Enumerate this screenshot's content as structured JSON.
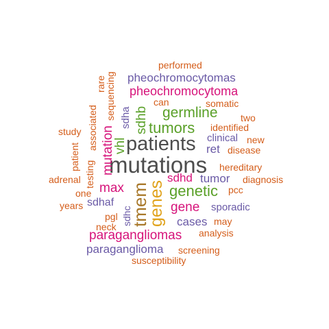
{
  "colors": {
    "dark_grey": "#4d4d4d",
    "purple": "#6a5aa6",
    "magenta": "#d6137a",
    "green": "#5aa028",
    "orange": "#d45d1a",
    "gold": "#e0a21b",
    "brown": "#a8782a"
  },
  "words": {
    "mutations": "mutations",
    "patients": "patients",
    "tmem": "tmem",
    "genes": "genes",
    "genetic": "genetic",
    "tumors": "tumors",
    "germline": "germline",
    "mutation": "mutation",
    "sdhb": "sdhb",
    "paragangliomas": "paragangliomas",
    "pheochromocytoma": "pheochromocytoma",
    "pheochromocytomas": "pheochromocytomas",
    "gene": "gene",
    "max": "max",
    "vhl": "vhl",
    "sdhd": "sdhd",
    "tumor": "tumor",
    "ret": "ret",
    "cases": "cases",
    "paraganglioma": "paraganglioma",
    "sdhaf": "sdhaf",
    "sdha": "sdha",
    "sdhc": "sdhc",
    "sporadic": "sporadic",
    "clinical": "clinical",
    "identified": "identified",
    "disease": "disease",
    "hereditary": "hereditary",
    "diagnosis": "diagnosis",
    "pcc": "pcc",
    "may": "may",
    "analysis": "analysis",
    "screening": "screening",
    "susceptibility": "susceptibility",
    "performed": "performed",
    "rare": "rare",
    "sequencing": "sequencing",
    "can": "can",
    "somatic": "somatic",
    "two": "two",
    "new": "new",
    "associated": "associated",
    "study": "study",
    "patient": "patient",
    "testing": "testing",
    "adrenal": "adrenal",
    "one": "one",
    "years": "years",
    "pgl": "pgl",
    "neck": "neck"
  }
}
